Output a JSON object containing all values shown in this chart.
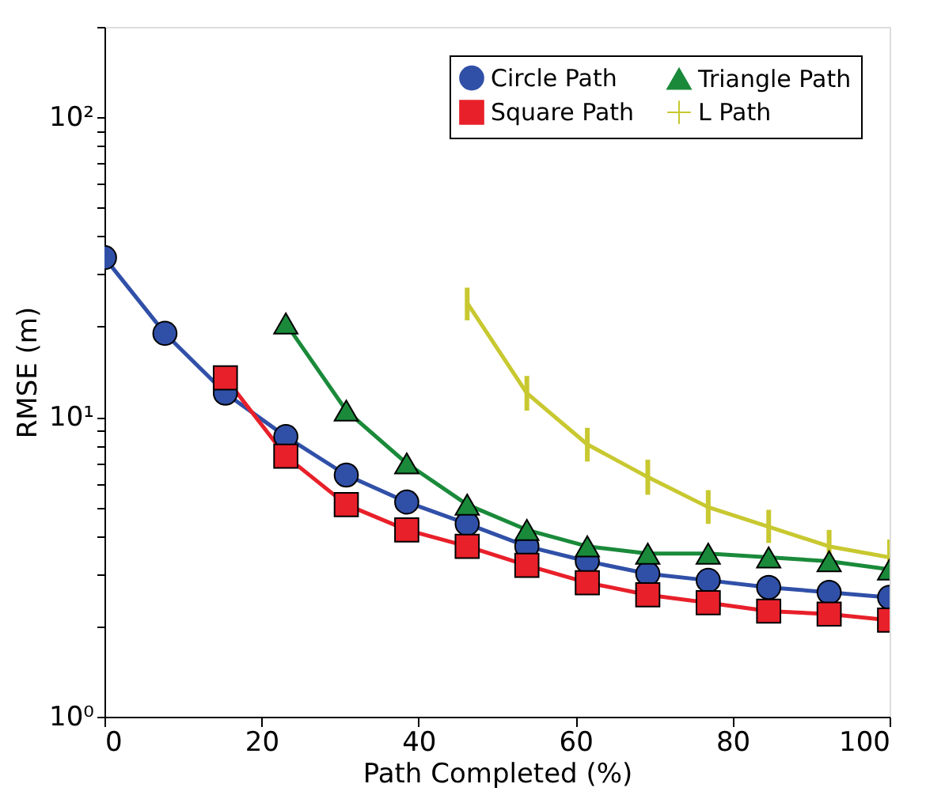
{
  "chart_data": {
    "type": "line",
    "xlabel": "Path Completed (%)",
    "ylabel": "RMSE (m)",
    "x": [
      0,
      7.7,
      15.4,
      23.1,
      30.8,
      38.5,
      46.2,
      53.8,
      61.5,
      69.2,
      76.9,
      84.6,
      92.3,
      100
    ],
    "series": [
      {
        "name": "Circle Path",
        "color": "#3050a8",
        "marker": "circle",
        "values": [
          34,
          19,
          12,
          8.6,
          6.4,
          5.2,
          4.4,
          3.7,
          3.3,
          3.0,
          2.85,
          2.7,
          2.6,
          2.5
        ]
      },
      {
        "name": "Square Path",
        "color": "#e8202a",
        "marker": "square",
        "values": [
          null,
          null,
          13.5,
          7.4,
          5.1,
          4.2,
          3.7,
          3.2,
          2.8,
          2.55,
          2.4,
          2.25,
          2.2,
          2.1
        ]
      },
      {
        "name": "Triangle Path",
        "color": "#1a8a3a",
        "marker": "triangle",
        "values": [
          null,
          null,
          null,
          20.5,
          10.5,
          7.0,
          5.1,
          4.2,
          3.7,
          3.5,
          3.5,
          3.4,
          3.3,
          3.1
        ]
      },
      {
        "name": "L Path",
        "color": "#c8c830",
        "marker": "none",
        "values": [
          null,
          null,
          null,
          null,
          null,
          null,
          24,
          12,
          8.1,
          6.3,
          5.0,
          4.3,
          3.7,
          3.4
        ],
        "errors": [
          null,
          null,
          null,
          null,
          null,
          null,
          [
            21,
            27
          ],
          [
            10.5,
            13.7
          ],
          [
            7.1,
            9.2
          ],
          [
            5.5,
            7.2
          ],
          [
            4.4,
            5.7
          ],
          [
            3.8,
            4.9
          ],
          [
            3.3,
            4.2
          ],
          [
            3.0,
            3.9
          ]
        ]
      }
    ],
    "log": true,
    "xlim": [
      0,
      100
    ],
    "xticks": [
      0,
      20,
      40,
      60,
      80,
      100
    ],
    "ylim": [
      1,
      200
    ],
    "yticks": [
      {
        "value": 1,
        "label": "10⁰"
      },
      {
        "value": 2,
        "label": null
      },
      {
        "value": 3,
        "label": null
      },
      {
        "value": 4,
        "label": null
      },
      {
        "value": 5,
        "label": null
      },
      {
        "value": 6,
        "label": null
      },
      {
        "value": 7,
        "label": null
      },
      {
        "value": 8,
        "label": null
      },
      {
        "value": 9,
        "label": null
      },
      {
        "value": 10,
        "label": "10¹"
      },
      {
        "value": 20,
        "label": null
      },
      {
        "value": 30,
        "label": null
      },
      {
        "value": 40,
        "label": null
      },
      {
        "value": 50,
        "label": null
      },
      {
        "value": 60,
        "label": null
      },
      {
        "value": 70,
        "label": null
      },
      {
        "value": 80,
        "label": null
      },
      {
        "value": 90,
        "label": null
      },
      {
        "value": 100,
        "label": "10²"
      },
      {
        "value": 200,
        "label": null
      }
    ],
    "grid": false,
    "legend": "top right",
    "line_style": "solid"
  }
}
